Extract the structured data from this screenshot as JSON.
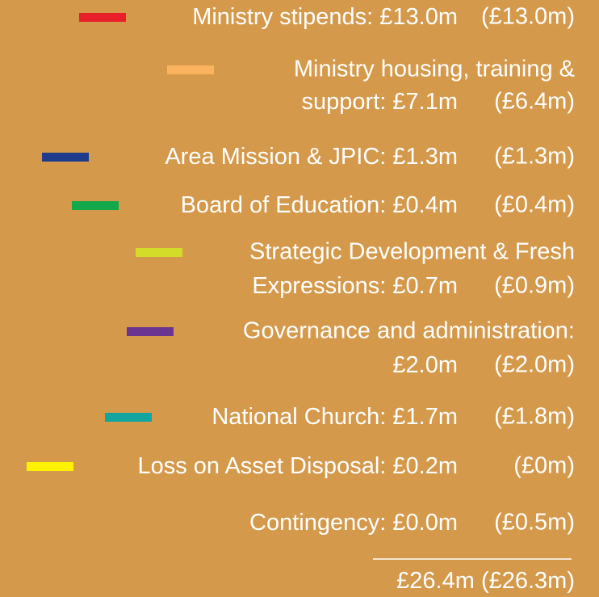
{
  "items": [
    {
      "color": "#e8202a",
      "label": "Ministry stipends:",
      "amount": "£13.0m",
      "previous": "(£13.0m)"
    },
    {
      "color": "#fbb35f",
      "lines": [
        "Ministry housing, training &"
      ],
      "label": "support:",
      "amount": "£7.1m",
      "previous": "(£6.4m)"
    },
    {
      "color": "#1f3c8c",
      "label": "Area Mission & JPIC:",
      "amount": "£1.3m",
      "previous": "(£1.3m)"
    },
    {
      "color": "#12a84b",
      "label": "Board of Education:",
      "amount": "£0.4m",
      "previous": "(£0.4m)"
    },
    {
      "color": "#d4dc2a",
      "lines": [
        "Strategic Development & Fresh"
      ],
      "label": "Expressions:",
      "amount": "£0.7m",
      "previous": "(£0.9m)"
    },
    {
      "color": "#6a3590",
      "lines": [
        "Governance and administration:"
      ],
      "amount": "£2.0m",
      "previous": "(£2.0m)"
    },
    {
      "color": "#12a5a0",
      "label": "National Church:",
      "amount": "£1.7m",
      "previous": "(£1.8m)"
    },
    {
      "color": "#fff200",
      "label": "Loss on Asset Disposal:",
      "amount": "£0.2m",
      "previous": "(£0m)"
    },
    {
      "label": "Contingency:",
      "amount": "£0.0m",
      "previous": "(£0.5m)"
    }
  ],
  "total": {
    "amount": "£26.4m",
    "previous": "(£26.3m)"
  }
}
